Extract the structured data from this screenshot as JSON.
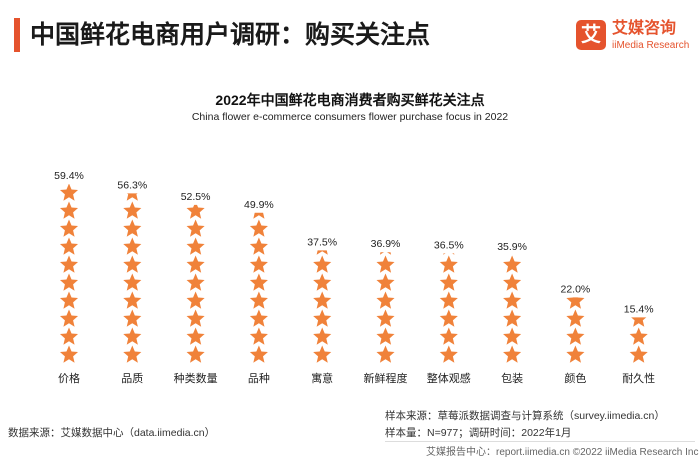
{
  "header": {
    "title": "中国鲜花电商用户调研：购买关注点"
  },
  "logo": {
    "mark": "艾",
    "name_cn": "艾媒咨询",
    "name_en": "iiMedia Research"
  },
  "chart_data": {
    "type": "bar",
    "title": "2022年中国鲜花电商消费者购买鲜花关注点",
    "subtitle": "China flower e-commerce consumers flower purchase focus in 2022",
    "categories": [
      "价格",
      "品质",
      "种类数量",
      "品种",
      "寓意",
      "新鲜程度",
      "整体观感",
      "包装",
      "颜色",
      "耐久性"
    ],
    "values": [
      59.4,
      56.3,
      52.5,
      49.9,
      37.5,
      36.9,
      36.5,
      35.9,
      22.0,
      15.4
    ],
    "value_labels": [
      "59.4%",
      "56.3%",
      "52.5%",
      "49.9%",
      "37.5%",
      "36.9%",
      "36.5%",
      "35.9%",
      "22.0%",
      "15.4%"
    ],
    "unit": "%",
    "marker": "star",
    "color": "#f0823a"
  },
  "footer": {
    "source": "数据来源：艾媒数据中心（data.iimedia.cn）",
    "sample_source": "样本来源：草莓派数据调查与计算系统（survey.iimedia.cn）",
    "sample_info": "样本量：N=977；调研时间：2022年1月",
    "copyright": "艾媒报告中心：report.iimedia.cn   ©2022 iiMedia Research Inc"
  }
}
